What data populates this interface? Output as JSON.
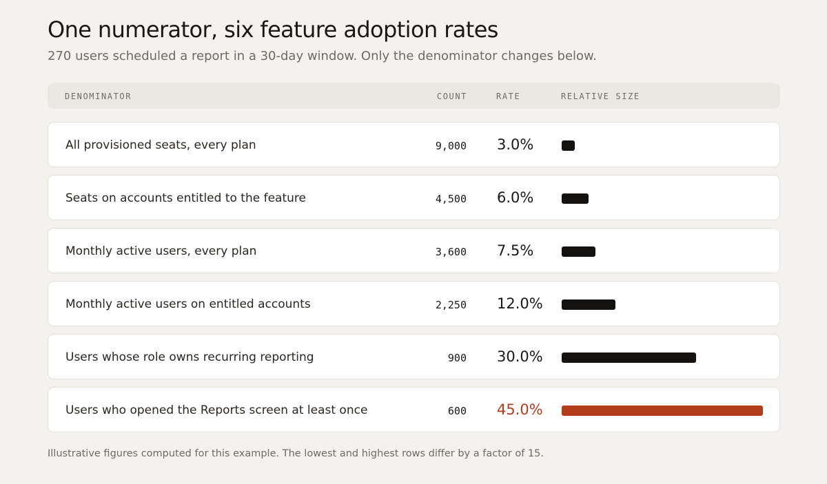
{
  "title": "One numerator, six feature adoption rates",
  "subtitle": "270 users scheduled a report in a 30-day window. Only the denominator changes below.",
  "columns": {
    "denominator": "DENOMINATOR",
    "count": "COUNT",
    "rate": "RATE",
    "relative_size": "RELATIVE SIZE"
  },
  "chart_data": {
    "type": "table",
    "numerator": 270,
    "rows": [
      {
        "label": "All provisioned seats, every plan",
        "count": "9,000",
        "rate": "3.0%",
        "value": 3.0
      },
      {
        "label": "Seats on accounts entitled to the feature",
        "count": "4,500",
        "rate": "6.0%",
        "value": 6.0
      },
      {
        "label": "Monthly active users, every plan",
        "count": "3,600",
        "rate": "7.5%",
        "value": 7.5
      },
      {
        "label": "Monthly active users on entitled accounts",
        "count": "2,250",
        "rate": "12.0%",
        "value": 12.0
      },
      {
        "label": "Users whose role owns recurring reporting",
        "count": "900",
        "rate": "30.0%",
        "value": 30.0
      },
      {
        "label": "Users who opened the Reports screen at least once",
        "count": "600",
        "rate": "45.0%",
        "value": 45.0,
        "highlight": true
      }
    ],
    "bar_max": 45.0
  },
  "colors": {
    "bar": "#141210",
    "accent": "#b33c1a",
    "background": "#f4f2ee"
  },
  "footnote": "Illustrative figures computed for this example. The lowest and highest rows differ by a factor of 15."
}
